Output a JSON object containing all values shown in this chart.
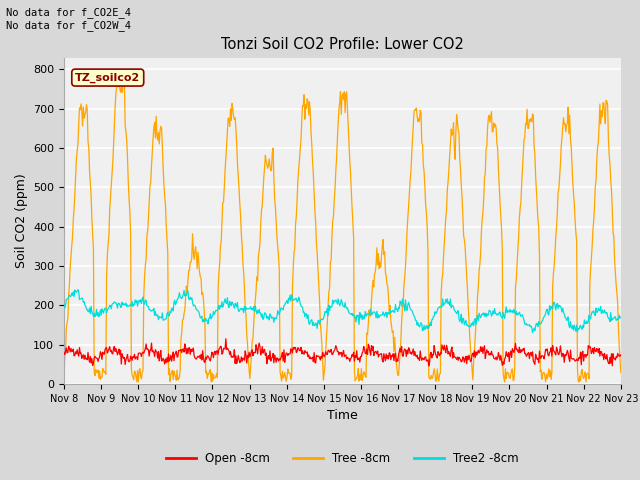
{
  "title": "Tonzi Soil CO2 Profile: Lower CO2",
  "xlabel": "Time",
  "ylabel": "Soil CO2 (ppm)",
  "ylim": [
    0,
    830
  ],
  "yticks": [
    0,
    100,
    200,
    300,
    400,
    500,
    600,
    700,
    800
  ],
  "fig_bg_color": "#d8d8d8",
  "plot_bg_color": "#f0f0f0",
  "grid_color": "#ffffff",
  "top_note": "No data for f_CO2E_4\nNo data for f_CO2W_4",
  "legend_label_box": "TZ_soilco2",
  "legend_labels": [
    "Open -8cm",
    "Tree -8cm",
    "Tree2 -8cm"
  ],
  "legend_colors": [
    "#ff0000",
    "#ffa500",
    "#00dddd"
  ],
  "line_colors": {
    "open": "#ff0000",
    "tree": "#ffa500",
    "tree2": "#00dddd"
  },
  "x_tick_labels": [
    "Nov 8",
    "Nov 9",
    "Nov 10",
    "Nov 11",
    "Nov 12",
    "Nov 13",
    "Nov 14",
    "Nov 15",
    "Nov 16",
    "Nov 17",
    "Nov 18",
    "Nov 19",
    "Nov 20",
    "Nov 21",
    "Nov 22",
    "Nov 23"
  ],
  "n_days": 15,
  "n_points_per_day": 48
}
